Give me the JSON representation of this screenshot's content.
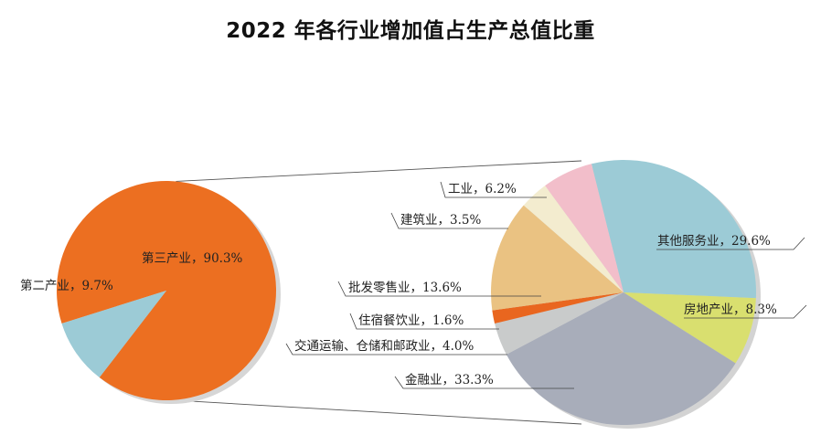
{
  "chart_data": {
    "type": "pie",
    "title": "2022 年各行业增加值占生产总值比重",
    "main_pie": {
      "slices": [
        {
          "label": "第三产业，90.3%",
          "name": "第三产业",
          "value": 90.3,
          "color": "#EC6F21"
        },
        {
          "label": "第二产业，9.7%",
          "name": "第二产业",
          "value": 9.7,
          "color": "#9CCBD6"
        }
      ]
    },
    "detail_pie": {
      "of": "第三产业",
      "slices": [
        {
          "label": "其他服务业，29.6%",
          "name": "其他服务业",
          "value": 29.6,
          "color": "#9CCBD6"
        },
        {
          "label": "房地产业，8.3%",
          "name": "房地产业",
          "value": 8.3,
          "color": "#D9DF6F"
        },
        {
          "label": "金融业，33.3%",
          "name": "金融业",
          "value": 33.3,
          "color": "#A8ADBA"
        },
        {
          "label": "交通运输、仓储和邮政业，4.0%",
          "name": "交通运输、仓储和邮政业",
          "value": 4.0,
          "color": "#C9CBCB"
        },
        {
          "label": "住宿餐饮业，1.6%",
          "name": "住宿餐饮业",
          "value": 1.6,
          "color": "#E9661F"
        },
        {
          "label": "批发零售业，13.6%",
          "name": "批发零售业",
          "value": 13.6,
          "color": "#EAC282"
        },
        {
          "label": "建筑业，3.5%",
          "name": "建筑业",
          "value": 3.5,
          "color": "#F3ECCF"
        },
        {
          "label": "工业，6.2%",
          "name": "工业",
          "value": 6.2,
          "color": "#F2BECA"
        }
      ]
    }
  }
}
